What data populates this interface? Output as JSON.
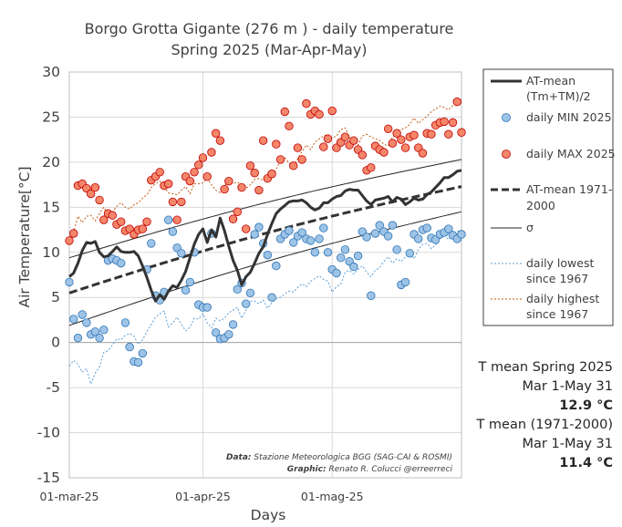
{
  "title_line1": "Borgo Grotta Gigante (276 m ) - daily temperature",
  "title_line2": "Spring 2025 (Mar-Apr-May)",
  "chart_data": {
    "type": "line",
    "xlabel": "Days",
    "ylabel": "Air Temperature[°C]",
    "ylim": [
      -15,
      30
    ],
    "yticks": [
      -15,
      -10,
      -5,
      0,
      5,
      10,
      15,
      20,
      25,
      30
    ],
    "xlim": [
      0,
      91
    ],
    "xticks": [
      {
        "label": "01-mar-25",
        "day": 0
      },
      {
        "label": "01-apr-25",
        "day": 31
      },
      {
        "label": "01-mag-25",
        "day": 61
      }
    ],
    "grid": true,
    "series": [
      {
        "name": "AT-mean (Tm+TM)/2",
        "type": "line",
        "color": "#333333",
        "values": [
          7.3,
          7.7,
          8.8,
          10.2,
          11.1,
          11.0,
          11.2,
          10.0,
          9.5,
          9.6,
          10.1,
          10.6,
          10.1,
          10.0,
          10.0,
          10.1,
          9.6,
          8.5,
          7.2,
          5.8,
          4.6,
          5.3,
          4.8,
          5.7,
          6.3,
          6.1,
          6.9,
          7.9,
          9.4,
          10.9,
          12.0,
          12.6,
          11.1,
          12.5,
          11.7,
          13.8,
          12.4,
          10.7,
          9.1,
          8.0,
          6.4,
          7.3,
          7.8,
          8.8,
          9.9,
          10.6,
          12.0,
          13.2,
          14.3,
          14.8,
          15.2,
          15.6,
          15.7,
          15.7,
          15.8,
          15.5,
          15.0,
          14.7,
          14.9,
          15.5,
          15.5,
          15.9,
          16.2,
          16.3,
          16.8,
          17.0,
          16.9,
          16.9,
          16.3,
          15.7,
          15.3,
          15.8,
          15.9,
          16.0,
          16.2,
          15.6,
          16.1,
          15.9,
          15.3,
          15.6,
          16.0,
          15.8,
          15.9,
          16.4,
          16.7,
          17.2,
          17.7,
          18.3,
          18.3,
          18.6,
          19.0,
          19.1
        ]
      },
      {
        "name": "daily MIN 2025",
        "type": "scatter",
        "color": "#9dc3e6",
        "values": [
          6.7,
          2.6,
          0.5,
          3.1,
          2.2,
          0.9,
          1.2,
          0.5,
          1.4,
          9.1,
          9.3,
          9.1,
          8.8,
          2.2,
          -0.5,
          -2.1,
          -2.2,
          -1.2,
          8.1,
          11.0,
          5.2,
          4.7,
          5.6,
          13.6,
          12.3,
          10.5,
          9.9,
          5.8,
          6.7,
          10.0,
          4.2,
          3.9,
          3.9,
          12.1,
          1.1,
          0.4,
          0.5,
          0.9,
          2.0,
          5.9,
          6.6,
          4.3,
          5.5,
          12.0,
          12.8,
          11.0,
          9.7,
          5.0,
          8.5,
          11.5,
          12.0,
          12.4,
          11.1,
          11.8,
          12.2,
          11.5,
          11.3,
          10.0,
          11.5,
          12.7,
          10.0,
          8.1,
          7.7,
          9.4,
          10.3,
          9.0,
          8.4,
          9.6,
          12.3,
          11.7,
          5.2,
          12.1,
          13.0,
          12.3,
          11.8,
          13.0,
          10.3,
          6.4,
          6.7,
          9.9,
          12.0,
          11.5,
          12.5,
          12.7,
          11.6,
          11.4,
          12.0,
          12.2,
          12.6,
          11.9,
          11.5,
          12.0
        ]
      },
      {
        "name": "daily MAX 2025",
        "type": "scatter",
        "color": "#f4866a",
        "values": [
          11.3,
          12.1,
          17.4,
          17.6,
          17.1,
          16.5,
          17.2,
          15.8,
          13.6,
          14.3,
          14.1,
          13.1,
          13.4,
          12.4,
          12.6,
          12.0,
          12.5,
          12.6,
          13.4,
          18.0,
          18.4,
          18.9,
          17.4,
          17.6,
          15.6,
          13.6,
          15.6,
          18.4,
          17.9,
          18.9,
          19.7,
          20.5,
          18.4,
          21.1,
          23.2,
          22.4,
          17.0,
          17.9,
          13.7,
          14.5,
          17.2,
          12.6,
          19.6,
          18.8,
          16.9,
          22.4,
          18.2,
          18.7,
          22.0,
          20.3,
          25.6,
          24.0,
          19.6,
          21.6,
          20.3,
          26.5,
          25.3,
          25.7,
          25.3,
          21.7,
          22.6,
          25.7,
          21.6,
          22.2,
          22.8,
          21.9,
          22.4,
          21.4,
          20.8,
          19.1,
          19.4,
          21.8,
          21.4,
          21.1,
          23.7,
          22.1,
          23.2,
          22.5,
          21.6,
          22.8,
          23.0,
          21.6,
          21.0,
          23.2,
          23.1,
          24.1,
          24.4,
          24.5,
          23.1,
          24.4,
          26.7,
          23.3
        ]
      },
      {
        "name": "AT-mean 1971-2000",
        "type": "dashed-line",
        "color": "#333333",
        "start": 5.5,
        "end": 17.3,
        "dates_visible": [
          "01-mar-25",
          "01-apr-25",
          "01-mag-25"
        ]
      },
      {
        "name": "σ",
        "type": "band",
        "color": "#262626",
        "upper_start": 9.4,
        "upper_end": 20.3,
        "lower_start": 1.9,
        "lower_end": 14.5
      },
      {
        "name": "daily lowest since 1967",
        "type": "dotted-line",
        "color": "#5b9bd5",
        "values": [
          -2.6,
          -2.0,
          -2.4,
          -3.3,
          -2.9,
          -4.6,
          -3.4,
          -2.7,
          -1.1,
          -0.9,
          -0.3,
          0.4,
          0.3,
          0.8,
          1.0,
          0.7,
          -0.2,
          0.3,
          1.2,
          2.0,
          2.8,
          3.2,
          3.5,
          1.7,
          2.2,
          2.8,
          2.0,
          1.3,
          1.7,
          2.7,
          2.6,
          3.2,
          2.2,
          1.6,
          2.7,
          2.4,
          2.7,
          3.3,
          3.6,
          3.9,
          2.7,
          3.6,
          4.6,
          4.6,
          4.3,
          4.7,
          3.8,
          4.4,
          4.8,
          5.0,
          5.4,
          5.7,
          5.6,
          6.1,
          6.5,
          6.2,
          6.8,
          7.1,
          7.4,
          7.0,
          6.8,
          5.6,
          6.2,
          6.5,
          7.8,
          8.0,
          7.6,
          8.1,
          8.5,
          7.8,
          7.3,
          8.0,
          8.3,
          9.0,
          9.5,
          8.8,
          9.3,
          9.0,
          9.5,
          9.8,
          9.3,
          10.3,
          10.9,
          11.0,
          10.4,
          10.8,
          11.6,
          12.0,
          11.4,
          11.9,
          12.3,
          12.5
        ]
      },
      {
        "name": "daily highest since 1967",
        "type": "dotted-line",
        "color": "#c55a11",
        "values": [
          11.0,
          12.2,
          14.0,
          13.3,
          14.0,
          14.1,
          13.5,
          14.3,
          15.0,
          14.2,
          14.5,
          15.1,
          15.5,
          15.0,
          14.8,
          15.3,
          15.5,
          16.0,
          16.4,
          17.2,
          17.6,
          17.9,
          17.3,
          16.6,
          16.5,
          16.4,
          16.9,
          17.3,
          16.5,
          17.6,
          17.6,
          17.7,
          18.2,
          17.5,
          16.9,
          16.6,
          17.3,
          18.1,
          17.6,
          17.8,
          17.4,
          17.1,
          17.5,
          18.1,
          18.2,
          18.0,
          18.8,
          18.4,
          19.2,
          20.2,
          20.5,
          19.9,
          19.4,
          20.4,
          21.2,
          21.9,
          21.4,
          22.2,
          22.6,
          22.9,
          23.1,
          22.7,
          22.9,
          23.6,
          23.8,
          22.8,
          22.3,
          21.9,
          22.9,
          23.1,
          22.8,
          22.6,
          22.4,
          22.0,
          21.8,
          22.8,
          23.2,
          23.6,
          23.8,
          24.2,
          24.9,
          24.3,
          24.7,
          25.1,
          25.6,
          25.9,
          26.2,
          26.1,
          25.8,
          26.3,
          26.6,
          26.9
        ]
      }
    ]
  },
  "legend": {
    "mean_line1": "AT-mean",
    "mean_line2": "(Tm+TM)/2",
    "min": "daily MIN 2025",
    "max": "daily MAX 2025",
    "clim_line1": "AT-mean 1971-",
    "clim_line2": "2000",
    "sigma": "σ",
    "lowest_line1": "daily lowest",
    "lowest_line2": "since 1967",
    "highest_line1": "daily highest",
    "highest_line2": "since 1967"
  },
  "credits": {
    "data_label": "Data:",
    "data_text": "Stazione Meteorologica BGG (SAG-CAI & ROSMI)",
    "graphic_label": "Graphic:",
    "graphic_text": "Renato R. Colucci @erreerreci"
  },
  "summary": {
    "t2025_label": "T mean Spring 2025",
    "t2025_period": "Mar 1-May 31",
    "t2025_value": "12.9 °C",
    "tclim_label": "T mean (1971-2000)",
    "tclim_period": "Mar 1-May 31",
    "tclim_value": "11.4 °C"
  },
  "colors": {
    "mean": "#333333",
    "min_fill": "#9dc3e6",
    "min_stroke": "#2e75b6",
    "max_fill": "#f4866a",
    "max_stroke": "#c00000",
    "lowest": "#5b9bd5",
    "highest": "#c55a11",
    "grid": "#d9d9d9"
  }
}
